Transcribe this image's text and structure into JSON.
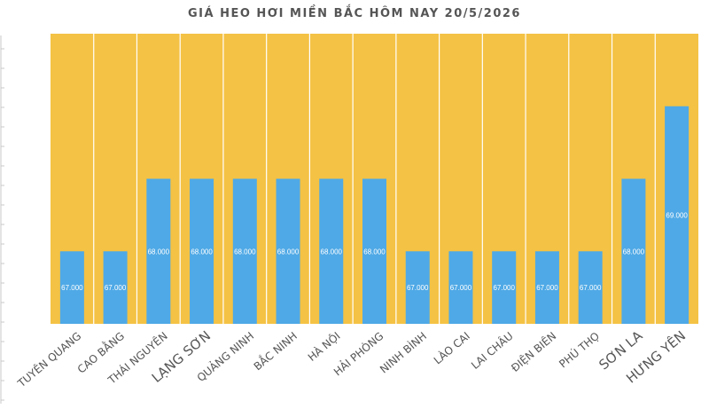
{
  "chart_data": {
    "type": "bar",
    "title": "GIÁ HEO HƠI MIỀN BẮC HÔM NAY 20/5/2026",
    "categories": [
      "TUYÊN QUANG",
      "CAO BẰNG",
      "THÁI NGUYÊN",
      "LẠNG SƠN",
      "QUẢNG NINH",
      "BẮC NINH",
      "HÀ NỘI",
      "HẢI PHÒNG",
      "NINH BÌNH",
      "LÀO CAI",
      "LAI CHÂU",
      "ĐIỆN BIÊN",
      "PHÚ THỌ",
      "SƠN LA",
      "HƯNG YÊN"
    ],
    "values": [
      67000,
      67000,
      68000,
      68000,
      68000,
      68000,
      68000,
      68000,
      67000,
      67000,
      67000,
      67000,
      67000,
      68000,
      69000
    ],
    "value_labels": [
      "67.000",
      "67.000",
      "68.000",
      "68.000",
      "68.000",
      "68.000",
      "68.000",
      "68.000",
      "67.000",
      "67.000",
      "67.000",
      "67.000",
      "67.000",
      "68.000",
      "69.000"
    ],
    "xlabel": "",
    "ylabel": "",
    "ylim": [
      66000,
      70000
    ],
    "grid": false,
    "legend": "none",
    "colors": {
      "plot_background": "#F4C244",
      "bar": "#4FA9E6",
      "divider": "#FFFFFF",
      "text": "#555555",
      "bar_label": "#FFFFFF"
    }
  }
}
